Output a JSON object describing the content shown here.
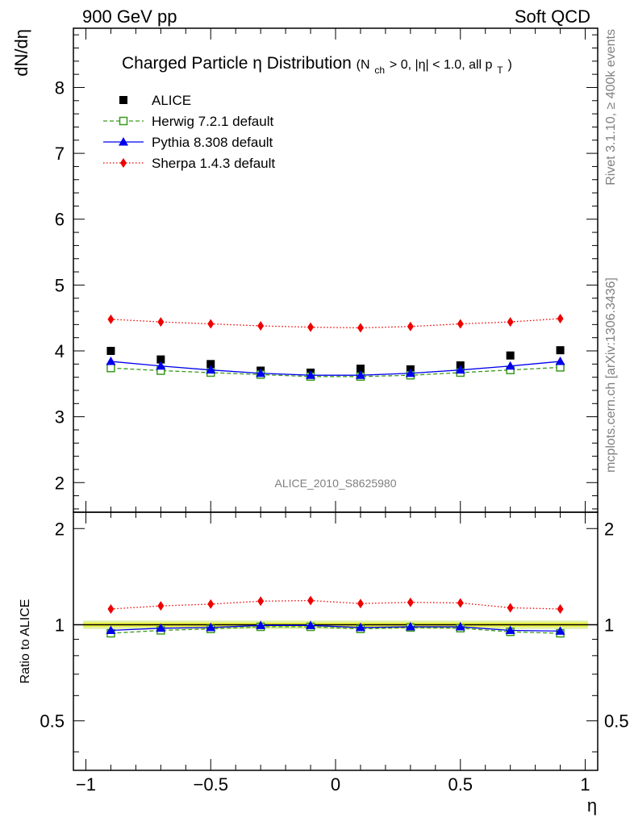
{
  "header": {
    "left": "900 GeV pp",
    "right": "Soft QCD"
  },
  "side_labels": {
    "rivet": "Rivet 3.1.10, ≥ 400k events",
    "mcplots": "mcplots.cern.ch [arXiv:1306.3436]"
  },
  "analysis_id": "ALICE_2010_S8625980",
  "chart_data": [
    {
      "type": "scatter",
      "title": "Charged Particle η Distribution",
      "title_suffix": {
        "open": "(N",
        "sub1": "ch",
        "mid": " > 0, |η| < 1.0, all p",
        "sub2": "T",
        "close": ")"
      },
      "ylabel": "dN/dη",
      "xlim": [
        -1.05,
        1.05
      ],
      "ylim": [
        1.55,
        8.9
      ],
      "yticks": [
        2,
        3,
        4,
        5,
        6,
        7,
        8
      ],
      "legend_position": "top-left",
      "x": [
        -0.9,
        -0.7,
        -0.5,
        -0.3,
        -0.1,
        0.1,
        0.3,
        0.5,
        0.7,
        0.9
      ],
      "series": [
        {
          "name": "ALICE",
          "color": "#000000",
          "marker": "square-filled",
          "line": "none",
          "values": [
            4.0,
            3.87,
            3.8,
            3.7,
            3.67,
            3.73,
            3.72,
            3.78,
            3.93,
            4.01
          ]
        },
        {
          "name": "Herwig 7.2.1 default",
          "color": "#3a9a1a",
          "marker": "square-open",
          "line": "dashed",
          "values": [
            3.74,
            3.7,
            3.67,
            3.64,
            3.61,
            3.61,
            3.63,
            3.67,
            3.71,
            3.75
          ]
        },
        {
          "name": "Pythia 8.308 default",
          "color": "#0000ee",
          "marker": "triangle",
          "line": "solid",
          "values": [
            3.84,
            3.77,
            3.71,
            3.66,
            3.63,
            3.63,
            3.66,
            3.71,
            3.77,
            3.84
          ]
        },
        {
          "name": "Sherpa 1.4.3 default",
          "color": "#ee0000",
          "marker": "diamond",
          "line": "dotted",
          "values": [
            4.48,
            4.44,
            4.41,
            4.38,
            4.36,
            4.35,
            4.37,
            4.41,
            4.44,
            4.49
          ]
        }
      ]
    },
    {
      "type": "scatter",
      "ylabel": "Ratio to ALICE",
      "xlabel": "η",
      "xlim": [
        -1.05,
        1.05
      ],
      "ylim": [
        0.35,
        2.25
      ],
      "yscale": "log",
      "yticks": [
        0.5,
        1,
        2
      ],
      "xticks": [
        -1,
        -0.5,
        0,
        0.5,
        1
      ],
      "xtick_labels": [
        "−1",
        "−0.5",
        "0",
        "0.5",
        "1"
      ],
      "x": [
        -0.9,
        -0.7,
        -0.5,
        -0.3,
        -0.1,
        0.1,
        0.3,
        0.5,
        0.7,
        0.9
      ],
      "reference_band": {
        "inner": [
          0.985,
          1.015
        ],
        "outer": [
          0.97,
          1.03
        ],
        "inner_color": "#f0f53a",
        "outer_color": "#dff0a8"
      },
      "series": [
        {
          "name": "Herwig 7.2.1 default",
          "color": "#3a9a1a",
          "marker": "square-open",
          "line": "dashed",
          "values": [
            0.94,
            0.96,
            0.97,
            0.985,
            0.985,
            0.97,
            0.98,
            0.975,
            0.95,
            0.94
          ]
        },
        {
          "name": "Pythia 8.308 default",
          "color": "#0000ee",
          "marker": "triangle",
          "line": "solid",
          "values": [
            0.96,
            0.975,
            0.98,
            0.995,
            0.995,
            0.98,
            0.985,
            0.985,
            0.96,
            0.955
          ]
        },
        {
          "name": "Sherpa 1.4.3 default",
          "color": "#ee0000",
          "marker": "diamond",
          "line": "dotted",
          "values": [
            1.12,
            1.145,
            1.16,
            1.185,
            1.19,
            1.165,
            1.175,
            1.17,
            1.13,
            1.12
          ]
        }
      ]
    }
  ]
}
